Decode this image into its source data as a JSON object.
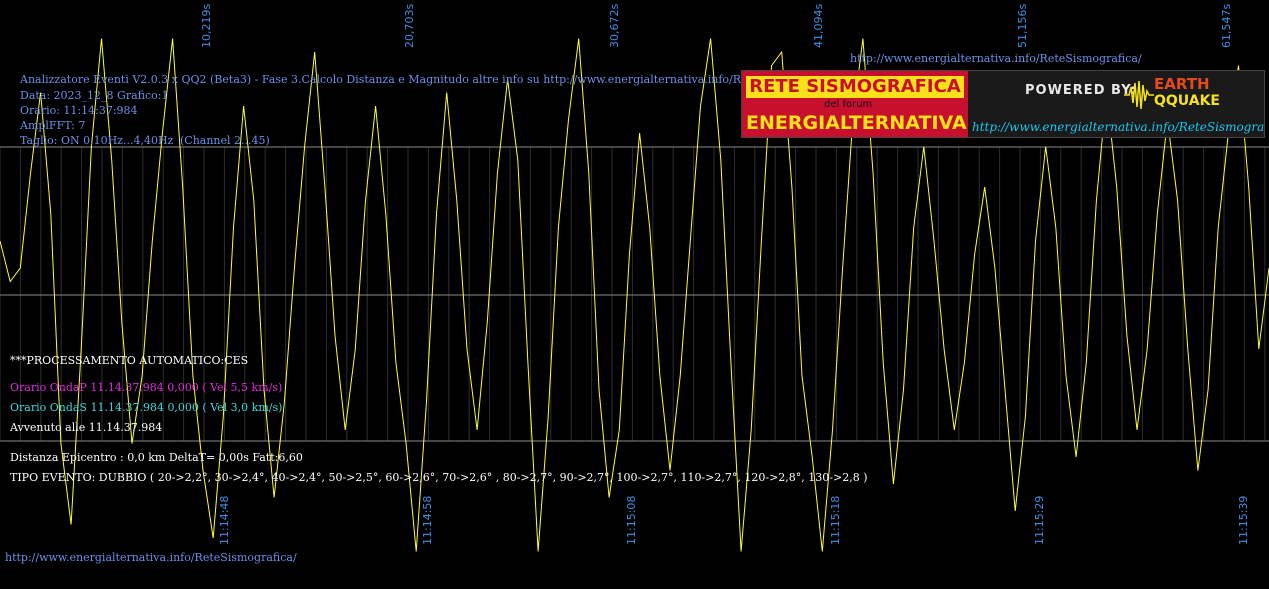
{
  "top_url": "http://www.energialternativa.info/ReteSismografica/",
  "bottom_url": "http://www.energialternativa.info/ReteSismografica/",
  "header": {
    "line1": "Analizzatore Eventi V2.0.3 x QQ2 (Beta3) - Fase 3.Calcolo Distanza e Magnitudo altre info su http://www.energialternativa.info/ReteSism",
    "line2": "Data: 2023_12_8 Grafico:1",
    "line3": "Orario: 11:14:37:984",
    "line4": "AmplFFT: 7",
    "line5": "Taglio: ON 0,10Hz...4,40Hz",
    "line5_channel": "(Channel 2...45)"
  },
  "processing": {
    "title": "***PROCESSAMENTO AUTOMATICO:CES",
    "wave_p": "Orario OndaP 11.14.37.984  0,000 ( Vel 5,5 km/s)",
    "wave_s": "Orario OndaS 11.14.37.984  0,000 ( Vel 3,0 km/s)",
    "occurred": "Avvenuto alle 11.14.37.984",
    "distance": "Distanza Epicentro : 0,0 km DeltaT= 0,00s  Fatt:6,60",
    "event_type": "TIPO EVENTO: DUBBIO ( 20->2,2°, 30->2,4°, 40->2,4°, 50->2,5°, 60->2,6°, 70->2,6° , 80->2,7°, 90->2,7°, 100->2,7°, 110->2,7°, 120->2,8°, 130->2,8 )"
  },
  "logo": {
    "title1": "RETE SISMOGRAFICA",
    "title_sub": "del forum",
    "title2": "ENERGIALTERNATIVA",
    "powered": "POWERED BY:",
    "brand1": "EARTH",
    "brand2": "QQUAKE",
    "url": "http://www.energialternativa.info/ReteSismografica"
  },
  "colors": {
    "background": "#000000",
    "trace": "#ffff33",
    "grid": "#555555",
    "axis_label": "#3f8fe6",
    "header_text": "#6f8fe8"
  },
  "chart_data": {
    "type": "line",
    "title": "",
    "xlabel": "",
    "ylabel": "",
    "top_ticks": [
      "10,219s",
      "20,703s",
      "30,672s",
      "41,094s",
      "51,156s",
      "61,547s"
    ],
    "bottom_ticks": [
      "11:14:48",
      "11:14:58",
      "11:15:08",
      "11:15:18",
      "11:15:29",
      "11:15:39"
    ],
    "xlim_seconds": [
      0,
      62.5
    ],
    "ylim": [
      -1,
      1
    ],
    "grid": true,
    "series": [
      {
        "t": [
          0,
          0.5,
          1,
          1.5,
          2,
          2.5,
          3,
          3.5,
          4,
          4.5,
          5,
          5.5,
          6,
          6.5,
          7,
          7.5,
          8,
          8.5,
          9,
          9.5,
          10,
          10.5,
          11,
          11.5,
          12,
          12.5,
          13,
          13.5,
          14,
          14.5,
          15,
          15.5,
          16,
          16.5,
          17,
          17.5,
          18,
          18.5,
          19,
          19.5,
          20,
          20.5,
          21,
          21.5,
          22,
          22.5,
          23,
          23.5,
          24,
          24.5,
          25,
          25.5,
          26,
          26.5,
          27,
          27.5,
          28,
          28.5,
          29,
          29.5,
          30,
          30.5,
          31,
          31.5,
          32,
          32.5,
          33,
          33.5,
          34,
          34.5,
          35,
          35.5,
          36,
          36.5,
          37,
          37.5,
          38,
          38.5,
          39,
          39.5,
          40,
          40.5,
          41,
          41.5,
          42,
          42.5,
          43,
          43.5,
          44,
          44.5,
          45,
          45.5,
          46,
          46.5,
          47,
          47.5,
          48,
          48.5,
          49,
          49.5,
          50,
          50.5,
          51,
          51.5,
          52,
          52.5,
          53,
          53.5,
          54,
          54.5,
          55,
          55.5,
          56,
          56.5,
          57,
          57.5,
          58,
          58.5,
          59,
          59.5,
          60,
          60.5,
          61,
          61.5,
          62,
          62.5
        ],
        "values": [
          0.2,
          0.05,
          0.1,
          0.45,
          0.75,
          0.3,
          -0.55,
          -0.85,
          -0.2,
          0.55,
          0.95,
          0.5,
          -0.1,
          -0.55,
          -0.3,
          0.2,
          0.6,
          0.95,
          0.4,
          -0.3,
          -0.65,
          -0.9,
          -0.45,
          0.25,
          0.7,
          0.35,
          -0.35,
          -0.75,
          -0.4,
          0.1,
          0.55,
          0.9,
          0.4,
          -0.15,
          -0.5,
          -0.2,
          0.35,
          0.7,
          0.3,
          -0.25,
          -0.55,
          -0.95,
          -0.4,
          0.3,
          0.75,
          0.35,
          -0.2,
          -0.5,
          -0.1,
          0.45,
          0.8,
          0.5,
          -0.25,
          -0.95,
          -0.45,
          0.25,
          0.65,
          0.95,
          0.45,
          -0.35,
          -0.75,
          -0.5,
          0.15,
          0.6,
          0.25,
          -0.3,
          -0.65,
          -0.3,
          0.2,
          0.7,
          0.95,
          0.5,
          -0.25,
          -0.95,
          -0.5,
          0.2,
          0.85,
          0.9,
          0.4,
          -0.3,
          -0.6,
          -0.95,
          -0.5,
          0.1,
          0.65,
          0.95,
          0.45,
          -0.25,
          -0.7,
          -0.35,
          0.25,
          0.55,
          0.2,
          -0.2,
          -0.5,
          -0.25,
          0.15,
          0.4,
          0.1,
          -0.35,
          -0.8,
          -0.45,
          0.2,
          0.55,
          0.25,
          -0.3,
          -0.6,
          -0.25,
          0.35,
          0.75,
          0.4,
          -0.15,
          -0.5,
          -0.2,
          0.3,
          0.65,
          0.35,
          -0.2,
          -0.65,
          -0.35,
          0.25,
          0.6,
          0.85,
          0.4,
          -0.2,
          0.1
        ]
      }
    ]
  }
}
